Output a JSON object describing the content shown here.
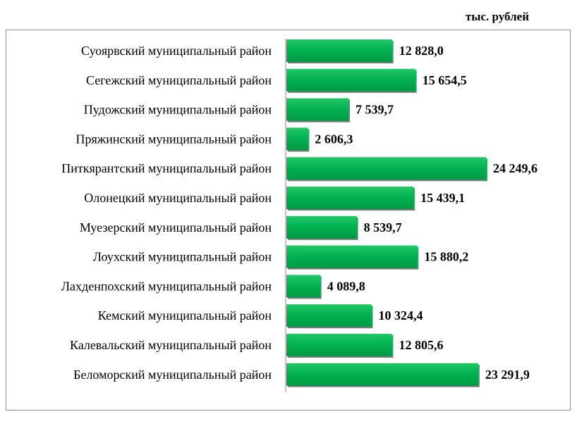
{
  "chart_data": {
    "type": "bar",
    "orientation": "horizontal",
    "unit": "тыс. рублей",
    "categories": [
      "Суоярвский муниципальный район",
      "Сегежский муниципальный район",
      "Пудожский муниципальный район",
      "Пряжинский муниципальный район",
      "Питкярантский муниципальный район",
      "Олонецкий муниципальный район",
      "Муезерский муниципальный район",
      "Лоухский муниципальный район",
      "Лахденпохский муниципальный район",
      "Кемский муниципальный район",
      "Калевальский муниципальный район",
      "Беломорский муниципальный район"
    ],
    "values": [
      12828.0,
      15654.5,
      7539.7,
      2606.3,
      24249.6,
      15439.1,
      8539.7,
      15880.2,
      4089.8,
      10324.4,
      12805.6,
      23291.9
    ],
    "value_labels": [
      "12 828,0",
      "15 654,5",
      "7 539,7",
      "2 606,3",
      "24 249,6",
      "15 439,1",
      "8 539,7",
      "15 880,2",
      "4 089,8",
      "10 324,4",
      "12 805,6",
      "23 291,9"
    ],
    "bar_color": "#00b050",
    "grid": false,
    "legend": "none"
  }
}
